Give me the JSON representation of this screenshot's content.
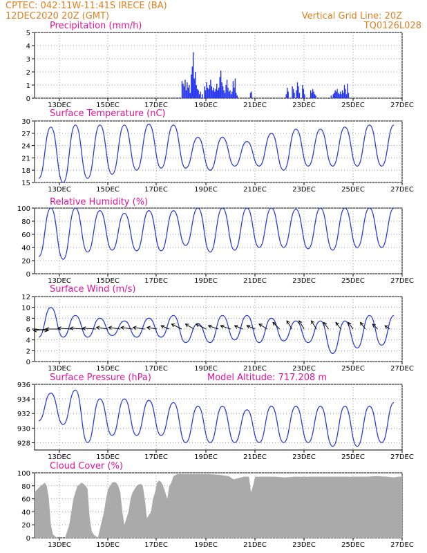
{
  "header": {
    "line1_left": "CPTEC:   042:11W-11:41S   IRECE (BA)",
    "line2_left": "12DEC2020 20Z (GMT)",
    "line1_right": "Vertical Grid Line: 20Z",
    "line2_right": "TQ0126L028"
  },
  "colors": {
    "header": "#e08020",
    "title": "#e0149a",
    "line": "#2a3cd8",
    "bar": "#2233ee",
    "cloud": "#aaaaaa"
  },
  "x_ticks": [
    "13DEC",
    "15DEC",
    "17DEC",
    "19DEC",
    "21DEC",
    "23DEC",
    "25DEC",
    "27DEC"
  ],
  "chart_data": [
    {
      "type": "bar",
      "title": "Precipitation (mm/h)",
      "x_range": [
        0,
        360
      ],
      "ylim": [
        0,
        5
      ],
      "yticks": [
        0,
        1,
        2,
        3,
        4,
        5
      ],
      "note": "hourly bars; x = hours since first plotted hour, labelled by date ticks",
      "values": [
        [
          136,
          0.05
        ],
        [
          140,
          0.05
        ],
        [
          144,
          1.3
        ],
        [
          145,
          1.1
        ],
        [
          146,
          0.9
        ],
        [
          147,
          1.4
        ],
        [
          148,
          0.6
        ],
        [
          149,
          1.2
        ],
        [
          150,
          0.8
        ],
        [
          151,
          1.0
        ],
        [
          152,
          0.4
        ],
        [
          153,
          1.8
        ],
        [
          154,
          2.4
        ],
        [
          155,
          3.5
        ],
        [
          156,
          1.5
        ],
        [
          157,
          2.0
        ],
        [
          158,
          1.0
        ],
        [
          159,
          0.7
        ],
        [
          160,
          0.6
        ],
        [
          161,
          0.3
        ],
        [
          162,
          0.5
        ],
        [
          164,
          0.3
        ],
        [
          166,
          0.9
        ],
        [
          167,
          0.6
        ],
        [
          168,
          1.2
        ],
        [
          169,
          0.8
        ],
        [
          170,
          0.7
        ],
        [
          171,
          1.0
        ],
        [
          172,
          1.4
        ],
        [
          173,
          0.9
        ],
        [
          174,
          0.6
        ],
        [
          175,
          0.8
        ],
        [
          176,
          0.5
        ],
        [
          177,
          0.7
        ],
        [
          178,
          1.1
        ],
        [
          179,
          0.6
        ],
        [
          180,
          0.8
        ],
        [
          181,
          1.6
        ],
        [
          182,
          2.1
        ],
        [
          183,
          1.2
        ],
        [
          184,
          0.9
        ],
        [
          185,
          0.6
        ],
        [
          186,
          0.4
        ],
        [
          187,
          1.0
        ],
        [
          188,
          1.4
        ],
        [
          189,
          0.8
        ],
        [
          190,
          0.5
        ],
        [
          191,
          0.6
        ],
        [
          192,
          0.3
        ],
        [
          193,
          0.5
        ],
        [
          194,
          1.3
        ],
        [
          195,
          0.8
        ],
        [
          196,
          1.5
        ],
        [
          197,
          0.4
        ],
        [
          198,
          0.2
        ],
        [
          211,
          0.4
        ],
        [
          212,
          0.5
        ],
        [
          246,
          0.3
        ],
        [
          247,
          0.8
        ],
        [
          248,
          0.5
        ],
        [
          252,
          0.9
        ],
        [
          253,
          0.7
        ],
        [
          254,
          0.4
        ],
        [
          256,
          0.6
        ],
        [
          257,
          1.2
        ],
        [
          258,
          0.9
        ],
        [
          259,
          0.4
        ],
        [
          262,
          1.0
        ],
        [
          263,
          0.7
        ],
        [
          264,
          0.3
        ],
        [
          270,
          0.6
        ],
        [
          271,
          0.4
        ],
        [
          272,
          0.7
        ],
        [
          273,
          0.5
        ],
        [
          274,
          0.3
        ],
        [
          275,
          0.2
        ],
        [
          290,
          0.2
        ],
        [
          292,
          0.3
        ],
        [
          293,
          0.4
        ],
        [
          294,
          0.6
        ],
        [
          295,
          0.5
        ],
        [
          296,
          0.7
        ],
        [
          297,
          0.4
        ],
        [
          298,
          0.3
        ],
        [
          299,
          0.5
        ],
        [
          300,
          0.3
        ],
        [
          301,
          0.6
        ],
        [
          302,
          0.4
        ],
        [
          303,
          1.0
        ],
        [
          304,
          0.7
        ],
        [
          305,
          0.3
        ],
        [
          306,
          1.1
        ],
        [
          307,
          0.4
        ]
      ]
    },
    {
      "type": "line",
      "title": "Surface Temperature (nC)",
      "x_range": [
        0,
        360
      ],
      "ylim": [
        15,
        30
      ],
      "yticks": [
        15,
        18,
        21,
        24,
        27,
        30
      ],
      "daily": [
        {
          "min": 16,
          "max": 28.5
        },
        {
          "min": 15,
          "max": 29
        },
        {
          "min": 16,
          "max": 29
        },
        {
          "min": 17,
          "max": 29
        },
        {
          "min": 18,
          "max": 29.2
        },
        {
          "min": 18.5,
          "max": 29
        },
        {
          "min": 18.5,
          "max": 26
        },
        {
          "min": 18,
          "max": 26
        },
        {
          "min": 19,
          "max": 25
        },
        {
          "min": 19,
          "max": 27
        },
        {
          "min": 18,
          "max": 28
        },
        {
          "min": 19,
          "max": 28
        },
        {
          "min": 19,
          "max": 28.5
        },
        {
          "min": 19,
          "max": 29
        },
        {
          "min": 19,
          "max": 29
        },
        {
          "min": 19.5,
          "max": 28
        }
      ]
    },
    {
      "type": "line",
      "title": "Relative Humidity (%)",
      "x_range": [
        0,
        360
      ],
      "ylim": [
        0,
        100
      ],
      "yticks": [
        0,
        20,
        40,
        60,
        80,
        100
      ],
      "daily": [
        {
          "min": 26,
          "max": 100
        },
        {
          "min": 22,
          "max": 100
        },
        {
          "min": 33,
          "max": 96
        },
        {
          "min": 36,
          "max": 92
        },
        {
          "min": 35,
          "max": 96
        },
        {
          "min": 35,
          "max": 96
        },
        {
          "min": 43,
          "max": 100
        },
        {
          "min": 33,
          "max": 100
        },
        {
          "min": 36,
          "max": 100
        },
        {
          "min": 40,
          "max": 100
        },
        {
          "min": 40,
          "max": 98
        },
        {
          "min": 38,
          "max": 100
        },
        {
          "min": 36,
          "max": 100
        },
        {
          "min": 40,
          "max": 100
        },
        {
          "min": 40,
          "max": 100
        },
        {
          "min": 40,
          "max": 95
        }
      ]
    },
    {
      "type": "line",
      "title": "Surface Wind (m/s)",
      "x_range": [
        0,
        360
      ],
      "ylim": [
        0,
        12
      ],
      "yticks": [
        0,
        2,
        4,
        6,
        8,
        10,
        12
      ],
      "daily": [
        {
          "min": 4.5,
          "max": 10
        },
        {
          "min": 4.5,
          "max": 8.5
        },
        {
          "min": 4.5,
          "max": 8
        },
        {
          "min": 4.8,
          "max": 7.5
        },
        {
          "min": 4.5,
          "max": 8
        },
        {
          "min": 4.5,
          "max": 8.5
        },
        {
          "min": 3.5,
          "max": 7
        },
        {
          "min": 3.5,
          "max": 8.5
        },
        {
          "min": 4,
          "max": 8.5
        },
        {
          "min": 3.5,
          "max": 8
        },
        {
          "min": 3.8,
          "max": 7.5
        },
        {
          "min": 3.5,
          "max": 7.5
        },
        {
          "min": 1.5,
          "max": 7.5
        },
        {
          "min": 2.5,
          "max": 8.5
        },
        {
          "min": 3,
          "max": 8.5
        },
        {
          "min": 3,
          "max": 7.5
        }
      ],
      "vectors": [
        {
          "x": 0,
          "y": 6,
          "u": 0.8,
          "v": -0.1
        },
        {
          "x": 12,
          "y": 6,
          "u": -0.8,
          "v": -0.1
        },
        {
          "x": 24,
          "y": 6,
          "u": -0.8,
          "v": 0
        },
        {
          "x": 36,
          "y": 6,
          "u": -0.8,
          "v": 0.05
        },
        {
          "x": 48,
          "y": 6,
          "u": -0.8,
          "v": 0.05
        },
        {
          "x": 60,
          "y": 6,
          "u": -0.8,
          "v": 0.05
        },
        {
          "x": 72,
          "y": 6,
          "u": -0.7,
          "v": 0.1
        },
        {
          "x": 84,
          "y": 6,
          "u": -0.7,
          "v": 0.1
        },
        {
          "x": 96,
          "y": 6,
          "u": -0.7,
          "v": 0.1
        },
        {
          "x": 108,
          "y": 6,
          "u": -0.7,
          "v": 0.1
        },
        {
          "x": 120,
          "y": 6,
          "u": -0.6,
          "v": 0.1
        },
        {
          "x": 132,
          "y": 6,
          "u": -0.5,
          "v": 0.2
        },
        {
          "x": 144,
          "y": 6,
          "u": -0.6,
          "v": 0.3
        },
        {
          "x": 156,
          "y": 6,
          "u": -0.5,
          "v": 0.3
        },
        {
          "x": 168,
          "y": 6,
          "u": -0.6,
          "v": 0.3
        },
        {
          "x": 180,
          "y": 6,
          "u": -0.6,
          "v": 0.2
        },
        {
          "x": 192,
          "y": 6,
          "u": -0.6,
          "v": 0.2
        },
        {
          "x": 204,
          "y": 6,
          "u": -0.5,
          "v": 0.2
        },
        {
          "x": 216,
          "y": 6,
          "u": -0.5,
          "v": 0.2
        },
        {
          "x": 228,
          "y": 6,
          "u": -0.5,
          "v": 0.3
        },
        {
          "x": 240,
          "y": 6,
          "u": -0.4,
          "v": 0.4
        },
        {
          "x": 252,
          "y": 6,
          "u": -0.3,
          "v": 0.5
        },
        {
          "x": 264,
          "y": 6,
          "u": -0.3,
          "v": 0.5
        },
        {
          "x": 276,
          "y": 6,
          "u": -0.3,
          "v": 0.5
        },
        {
          "x": 288,
          "y": 6,
          "u": -0.3,
          "v": 0.4
        },
        {
          "x": 300,
          "y": 6,
          "u": -0.3,
          "v": 0.4
        },
        {
          "x": 312,
          "y": 6,
          "u": -0.3,
          "v": 0.4
        },
        {
          "x": 324,
          "y": 6,
          "u": -0.3,
          "v": 0.4
        },
        {
          "x": 336,
          "y": 6,
          "u": -0.3,
          "v": 0.3
        },
        {
          "x": 348,
          "y": 6,
          "u": -0.3,
          "v": 0.2
        }
      ]
    },
    {
      "type": "line",
      "title": "Surface Pressure (hPa)",
      "annotation": "Model Altitude: 717.208 m",
      "x_range": [
        0,
        360
      ],
      "ylim": [
        927,
        936
      ],
      "yticks": [
        928,
        930,
        932,
        934,
        936
      ],
      "daily": [
        {
          "min": 931,
          "max": 934.8
        },
        {
          "min": 930.5,
          "max": 935.2
        },
        {
          "min": 928,
          "max": 934
        },
        {
          "min": 929,
          "max": 934
        },
        {
          "min": 929,
          "max": 933.8
        },
        {
          "min": 929,
          "max": 933.5
        },
        {
          "min": 928,
          "max": 933
        },
        {
          "min": 928,
          "max": 933
        },
        {
          "min": 928,
          "max": 932.5
        },
        {
          "min": 928,
          "max": 933
        },
        {
          "min": 928,
          "max": 933
        },
        {
          "min": 928,
          "max": 933
        },
        {
          "min": 927.5,
          "max": 933
        },
        {
          "min": 927.5,
          "max": 933
        },
        {
          "min": 928,
          "max": 933.5
        },
        {
          "min": 928,
          "max": 933
        }
      ]
    },
    {
      "type": "area",
      "title": "Cloud Cover (%)",
      "x_range": [
        0,
        360
      ],
      "ylim": [
        0,
        100
      ],
      "yticks": [
        0,
        20,
        40,
        60,
        80,
        100
      ],
      "values": [
        [
          0,
          70
        ],
        [
          3,
          75
        ],
        [
          6,
          80
        ],
        [
          8,
          82
        ],
        [
          10,
          85
        ],
        [
          12,
          80
        ],
        [
          14,
          60
        ],
        [
          16,
          20
        ],
        [
          18,
          5
        ],
        [
          22,
          0
        ],
        [
          30,
          0
        ],
        [
          34,
          20
        ],
        [
          38,
          60
        ],
        [
          40,
          70
        ],
        [
          42,
          80
        ],
        [
          44,
          82
        ],
        [
          46,
          85
        ],
        [
          48,
          83
        ],
        [
          50,
          80
        ],
        [
          52,
          75
        ],
        [
          54,
          30
        ],
        [
          56,
          10
        ],
        [
          58,
          5
        ],
        [
          62,
          0
        ],
        [
          68,
          40
        ],
        [
          70,
          60
        ],
        [
          72,
          75
        ],
        [
          74,
          80
        ],
        [
          76,
          85
        ],
        [
          78,
          86
        ],
        [
          80,
          85
        ],
        [
          82,
          80
        ],
        [
          84,
          70
        ],
        [
          86,
          40
        ],
        [
          88,
          20
        ],
        [
          90,
          30
        ],
        [
          92,
          40
        ],
        [
          94,
          60
        ],
        [
          96,
          70
        ],
        [
          98,
          75
        ],
        [
          100,
          80
        ],
        [
          102,
          82
        ],
        [
          104,
          83
        ],
        [
          106,
          80
        ],
        [
          108,
          60
        ],
        [
          110,
          30
        ],
        [
          114,
          40
        ],
        [
          116,
          60
        ],
        [
          118,
          70
        ],
        [
          120,
          85
        ],
        [
          122,
          88
        ],
        [
          124,
          86
        ],
        [
          126,
          80
        ],
        [
          128,
          70
        ],
        [
          130,
          60
        ],
        [
          132,
          80
        ],
        [
          134,
          85
        ],
        [
          136,
          95
        ],
        [
          140,
          98
        ],
        [
          150,
          98
        ],
        [
          160,
          98
        ],
        [
          170,
          98
        ],
        [
          180,
          97
        ],
        [
          190,
          95
        ],
        [
          195,
          90
        ],
        [
          200,
          92
        ],
        [
          205,
          94
        ],
        [
          210,
          94
        ],
        [
          212,
          70
        ],
        [
          214,
          80
        ],
        [
          216,
          94
        ],
        [
          225,
          94
        ],
        [
          235,
          94
        ],
        [
          245,
          93
        ],
        [
          255,
          94
        ],
        [
          265,
          94
        ],
        [
          275,
          94
        ],
        [
          285,
          94
        ],
        [
          295,
          94
        ],
        [
          305,
          94
        ],
        [
          315,
          94
        ],
        [
          325,
          94
        ],
        [
          335,
          95
        ],
        [
          345,
          94
        ],
        [
          352,
          93
        ],
        [
          356,
          94
        ],
        [
          360,
          94
        ]
      ]
    }
  ]
}
